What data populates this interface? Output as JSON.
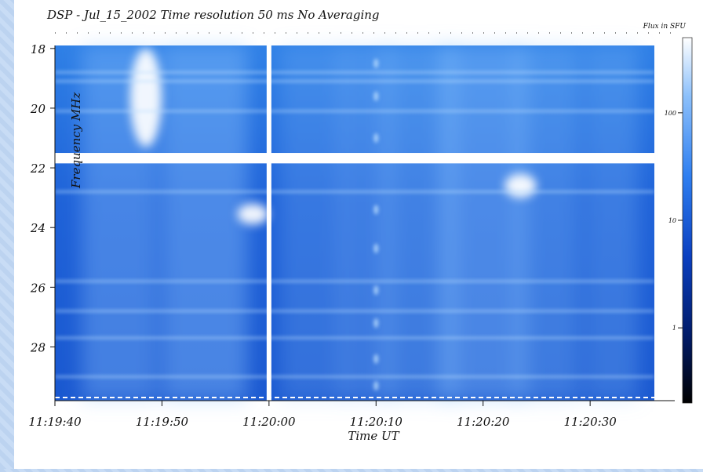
{
  "chart_data": {
    "type": "heatmap",
    "title": "DSP - Jul_15_2002  Time resolution  50 ms    No  Averaging",
    "xlabel": "Time UT",
    "ylabel": "Frequency MHz",
    "x_ticks": [
      "11:19:40",
      "11:19:50",
      "11:20:00",
      "11:20:10",
      "11:20:20",
      "11:20:30"
    ],
    "x_tick_seconds": [
      0,
      10,
      20,
      30,
      40,
      50
    ],
    "xlim_seconds": [
      0,
      56
    ],
    "y_ticks": [
      "18",
      "20",
      "22",
      "24",
      "26",
      "28"
    ],
    "y_tick_values": [
      18,
      20,
      22,
      24,
      26,
      28
    ],
    "ylim": [
      17.9,
      29.8
    ],
    "colorbar": {
      "title": "Flux in SFU",
      "scale": "log",
      "ticks": [
        "100",
        "10",
        "1"
      ],
      "tick_values": [
        100,
        10,
        1
      ],
      "range": [
        0.2,
        500
      ],
      "colors": [
        "#000000",
        "#001a66",
        "#0a3fc0",
        "#2e7ef0",
        "#8cc0fb",
        "#ffffff"
      ]
    },
    "features": {
      "data_gap_time_seconds": 20,
      "data_gap_freq_MHz": [
        21.5,
        21.85
      ],
      "bright_burst": [
        {
          "t": 8.5,
          "f_start": 18.0,
          "f_end": 21.3
        },
        {
          "t": 43.5,
          "f_start": 22.2,
          "f_end": 23.0
        },
        {
          "t": 18.5,
          "f_start": 23.2,
          "f_end": 23.9
        }
      ]
    }
  }
}
